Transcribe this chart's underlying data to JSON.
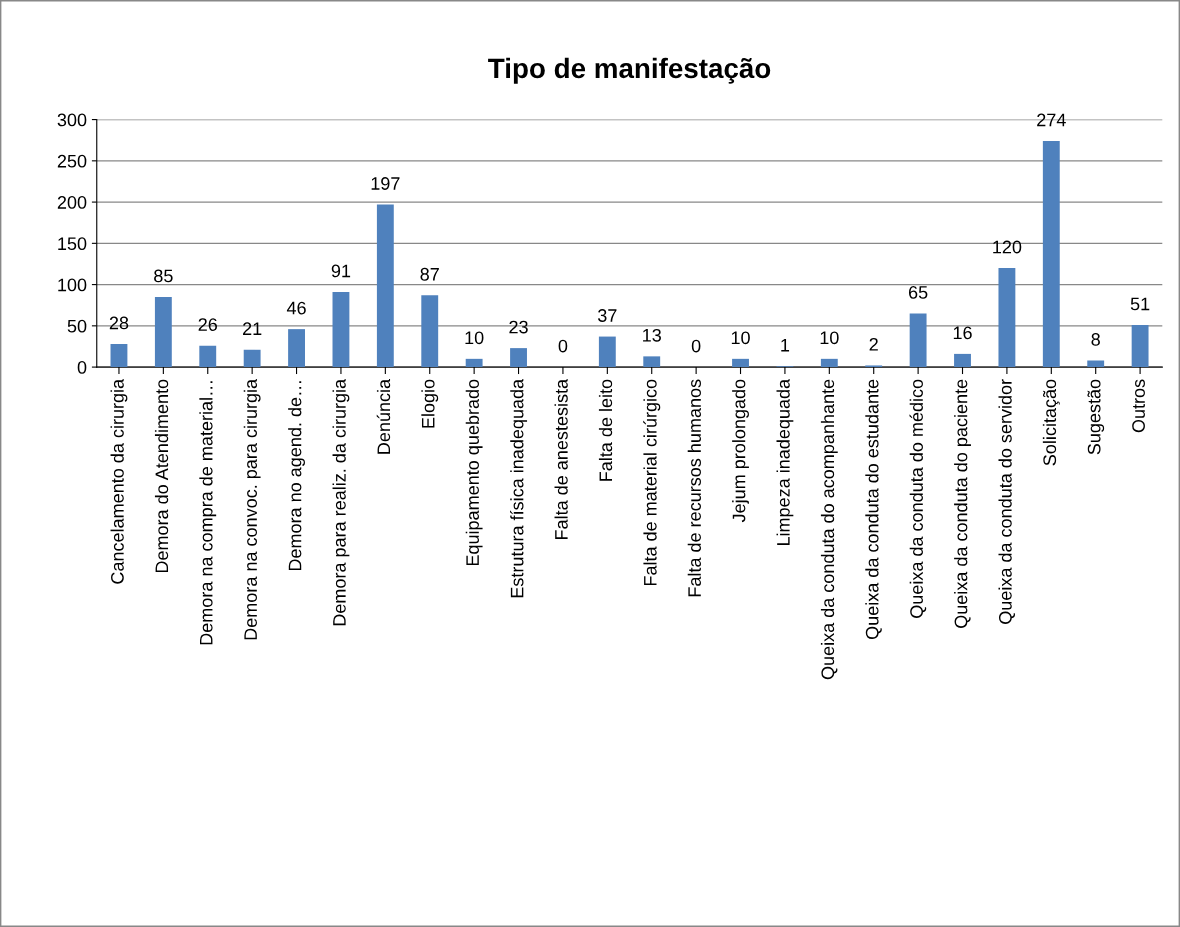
{
  "chart_data": {
    "type": "bar",
    "title": "Tipo de manifestação",
    "categories": [
      "Cancelamento da cirurgia",
      "Demora do Atendimento",
      "Demora na compra de material…",
      "Demora na convoc. para cirurgia",
      "Demora no agend. de…",
      "Demora para realiz. da cirurgia",
      "Denúncia",
      "Elogio",
      "Equipamento quebrado",
      "Estrutura física inadequada",
      "Falta de anestesista",
      "Falta de leito",
      "Falta de material cirúrgico",
      "Falta de recursos humanos",
      "Jejum prolongado",
      "Limpeza inadequada",
      "Queixa da conduta do acompanhante",
      "Queixa da conduta do estudante",
      "Queixa da conduta do médico",
      "Queixa da conduta do paciente",
      "Queixa da conduta do servidor",
      "Solicitação",
      "Sugestão",
      "Outros"
    ],
    "values": [
      28,
      85,
      26,
      21,
      46,
      91,
      197,
      87,
      10,
      23,
      0,
      37,
      13,
      0,
      10,
      1,
      10,
      2,
      65,
      16,
      120,
      274,
      8,
      51
    ],
    "color": "#4f81bd",
    "ylim": [
      0,
      300
    ],
    "yticks": [
      0,
      50,
      100,
      150,
      200,
      250,
      300
    ],
    "grid": "y",
    "data_labels": true
  }
}
